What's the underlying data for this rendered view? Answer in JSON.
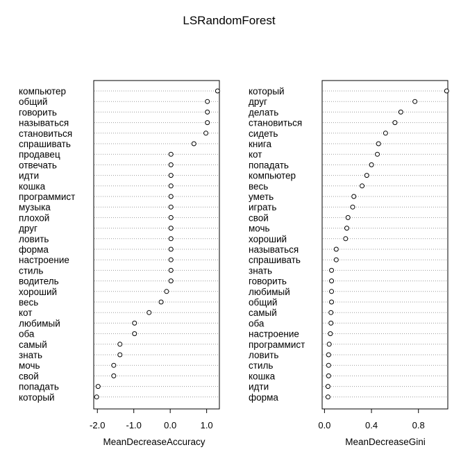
{
  "title": "LSRandomForest",
  "chart_data": [
    {
      "type": "scatter",
      "xlabel": "MeanDecreaseAccuracy",
      "xlim": [
        -2.1,
        1.35
      ],
      "xticks": [
        -2.0,
        -1.0,
        0.0,
        1.0
      ],
      "xtick_labels": [
        "-2.0",
        "-1.0",
        "0.0",
        "1.0"
      ],
      "grid": "dotted horizontal per row",
      "labels": [
        "компьютер",
        "общий",
        "говорить",
        "называться",
        "становиться",
        "спрашивать",
        "продавец",
        "отвечать",
        "идти",
        "кошка",
        "программист",
        "музыка",
        "плохой",
        "друг",
        "ловить",
        "форма",
        "настроение",
        "стиль",
        "водитель",
        "хороший",
        "весь",
        "кот",
        "любимый",
        "оба",
        "самый",
        "знать",
        "мочь",
        "свой",
        "попадать",
        "который"
      ],
      "values": [
        1.3,
        1.02,
        1.02,
        1.02,
        0.98,
        0.65,
        0.02,
        0.02,
        0.02,
        0.02,
        0.02,
        0.02,
        0.02,
        0.02,
        0.02,
        0.02,
        0.02,
        0.02,
        0.02,
        -0.1,
        -0.25,
        -0.58,
        -0.98,
        -0.98,
        -1.38,
        -1.38,
        -1.55,
        -1.55,
        -1.98,
        -2.02
      ]
    },
    {
      "type": "scatter",
      "xlabel": "MeanDecreaseGini",
      "xlim": [
        -0.02,
        1.05
      ],
      "xticks": [
        0.0,
        0.4,
        0.8
      ],
      "xtick_labels": [
        "0.0",
        "0.4",
        "0.8"
      ],
      "grid": "dotted horizontal per row",
      "labels": [
        "который",
        "друг",
        "делать",
        "становиться",
        "сидеть",
        "книга",
        "кот",
        "попадать",
        "компьютер",
        "весь",
        "уметь",
        "играть",
        "свой",
        "мочь",
        "хороший",
        "называться",
        "спрашивать",
        "знать",
        "говорить",
        "любимый",
        "общий",
        "самый",
        "оба",
        "настроение",
        "программист",
        "ловить",
        "стиль",
        "кошка",
        "идти",
        "форма"
      ],
      "values": [
        1.04,
        0.77,
        0.65,
        0.6,
        0.52,
        0.46,
        0.45,
        0.4,
        0.36,
        0.32,
        0.25,
        0.24,
        0.2,
        0.19,
        0.18,
        0.1,
        0.1,
        0.06,
        0.06,
        0.06,
        0.06,
        0.055,
        0.055,
        0.05,
        0.04,
        0.035,
        0.035,
        0.035,
        0.03,
        0.03
      ]
    }
  ]
}
